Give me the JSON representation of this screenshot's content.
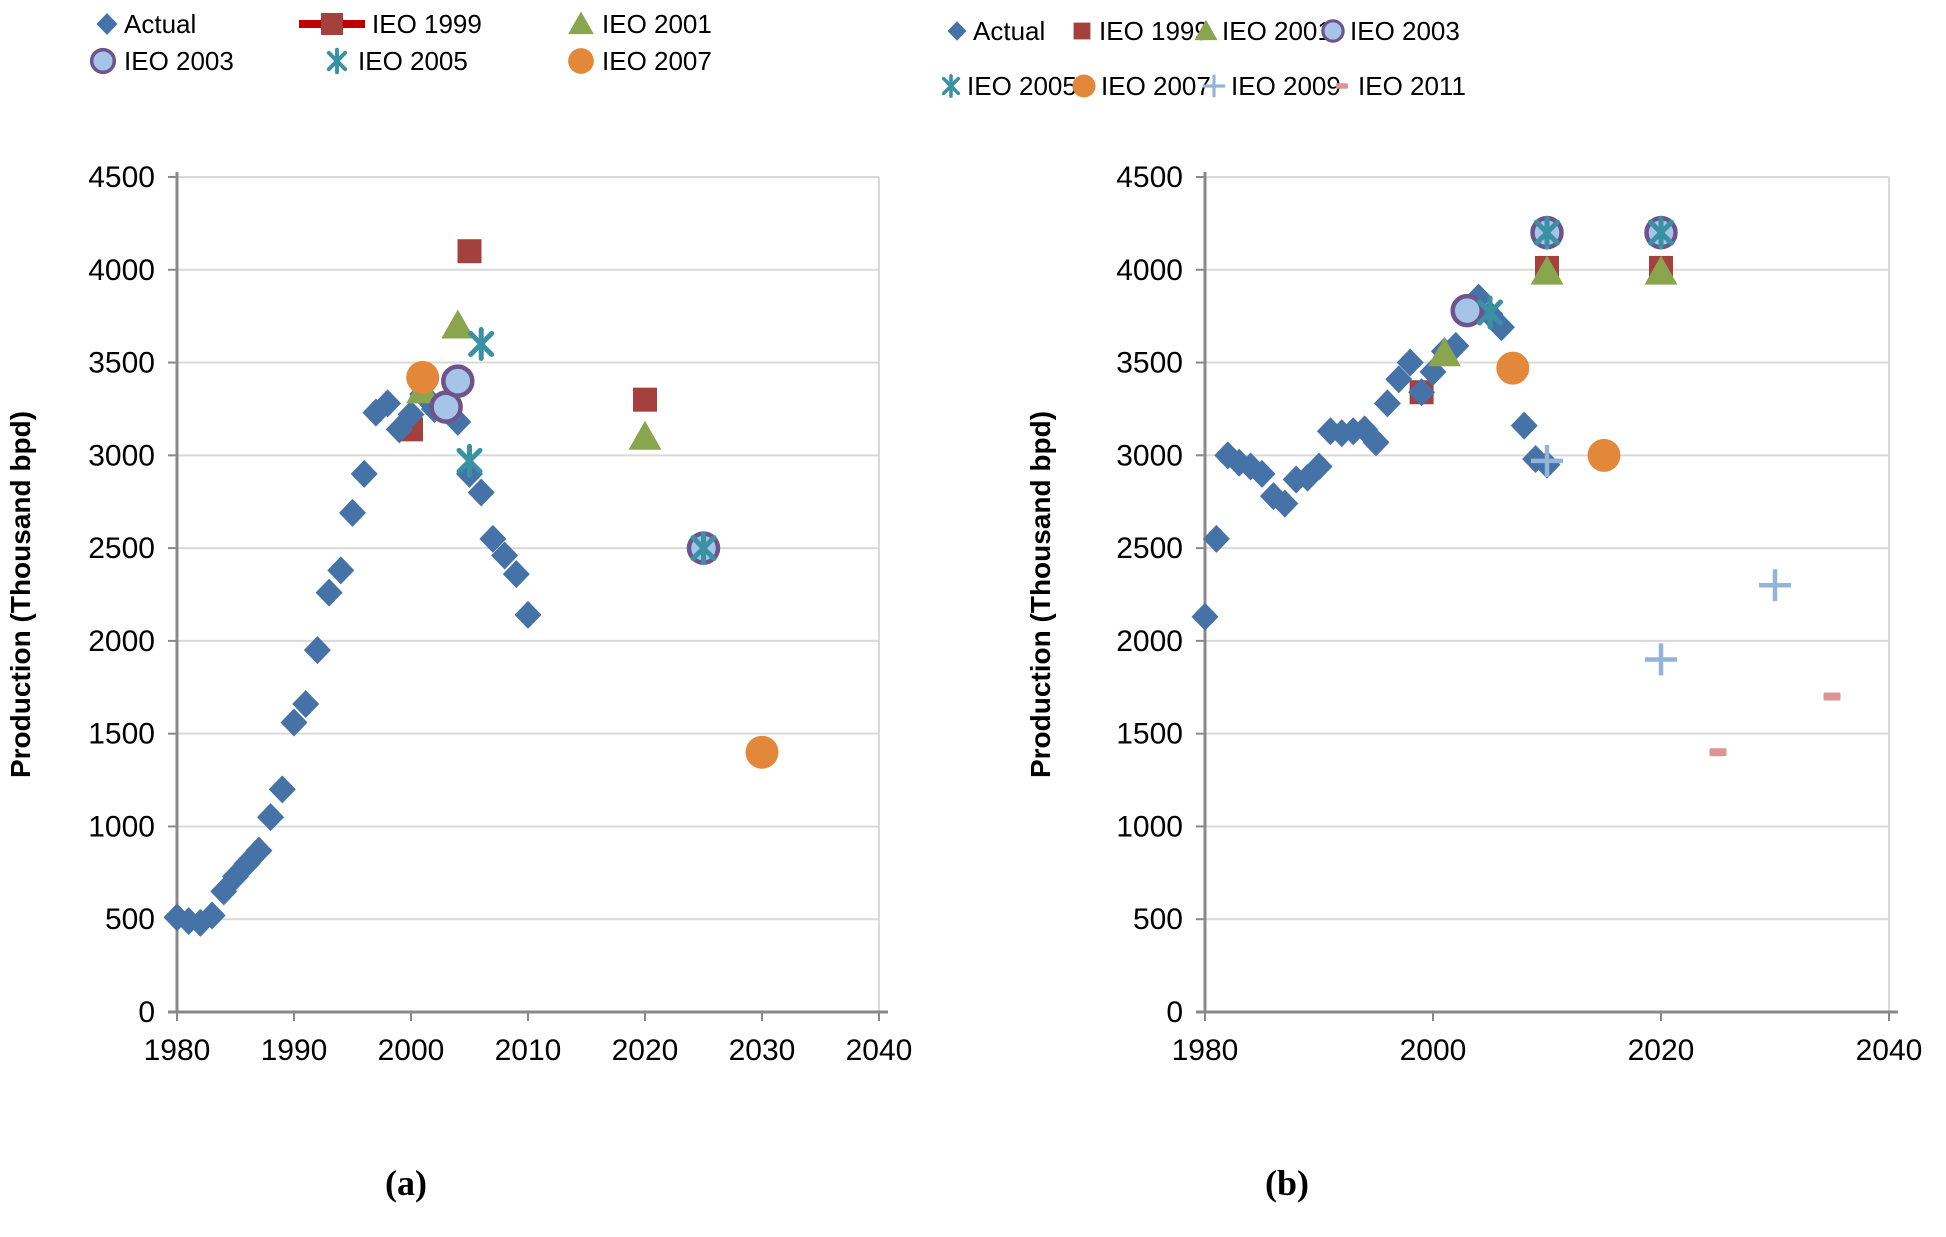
{
  "figure": {
    "ylabel": "Production (Thousand bpd)",
    "colors": {
      "actual_blue": "#4572A7",
      "ieo1999_red": "#A5413D",
      "ieo1999_legend_line_red": "#C00000",
      "ieo2001_green": "#89A54E",
      "ieo2003_fill_lightblue": "#A6C4E7",
      "ieo2003_ring_purple": "#6E548D",
      "ieo2005_teal": "#3A91A4",
      "ieo2007_orange": "#E3883B",
      "ieo2009_lightblue": "#95B3D7",
      "ieo2011_pink": "#D99694",
      "gridline": "#D9D9D9",
      "axis": "#898989"
    }
  },
  "chart_data": [
    {
      "id": "a",
      "type": "scatter",
      "caption": "(a)",
      "title": "",
      "xlabel": "",
      "ylabel": "Production (Thousand bpd)",
      "xlim": [
        1980,
        2040
      ],
      "ylim": [
        0,
        4500
      ],
      "grid": "horizontal",
      "x_ticks": [
        1980,
        1990,
        2000,
        2010,
        2020,
        2030,
        2040
      ],
      "y_ticks": [
        4500,
        4000,
        3500,
        3000,
        2500,
        2000,
        1500,
        1000,
        500,
        0
      ],
      "legend_rows": [
        [
          "Actual",
          "IEO 1999",
          "IEO 2001"
        ],
        [
          "IEO 2003",
          "IEO 2005",
          "IEO 2007"
        ]
      ],
      "series": [
        {
          "name": "IEO 1999",
          "marker": "square-icon",
          "color": "#A5413D",
          "legend_icon": "line-square-icon",
          "points": [
            [
              2000,
              3140
            ],
            [
              2005,
              4100
            ],
            [
              2020,
              3300
            ]
          ]
        },
        {
          "name": "Actual",
          "marker": "diamond-icon",
          "color": "#4572A7",
          "points": [
            [
              1980,
              510
            ],
            [
              1981,
              490
            ],
            [
              1982,
              480
            ],
            [
              1983,
              520
            ],
            [
              1984,
              650
            ],
            [
              1985,
              730
            ],
            [
              1986,
              800
            ],
            [
              1987,
              870
            ],
            [
              1988,
              1050
            ],
            [
              1989,
              1200
            ],
            [
              1990,
              1560
            ],
            [
              1991,
              1660
            ],
            [
              1992,
              1950
            ],
            [
              1993,
              2260
            ],
            [
              1994,
              2380
            ],
            [
              1995,
              2690
            ],
            [
              1996,
              2900
            ],
            [
              1997,
              3230
            ],
            [
              1998,
              3280
            ],
            [
              1999,
              3140
            ],
            [
              2000,
              3220
            ],
            [
              2001,
              3330
            ],
            [
              2002,
              3250
            ],
            [
              2003,
              3260
            ],
            [
              2004,
              3180
            ],
            [
              2005,
              2900
            ],
            [
              2006,
              2800
            ],
            [
              2007,
              2550
            ],
            [
              2008,
              2460
            ],
            [
              2009,
              2360
            ],
            [
              2010,
              2140
            ]
          ]
        },
        {
          "name": "IEO 2001",
          "marker": "triangle-icon",
          "color": "#89A54E",
          "points": [
            [
              2001,
              3350
            ],
            [
              2004,
              3700
            ],
            [
              2020,
              3100
            ]
          ]
        },
        {
          "name": "IEO 2003",
          "marker": "ring-circle-icon",
          "color": "#A6C4E7",
          "stroke": "#6E548D",
          "points": [
            [
              2003,
              3260
            ],
            [
              2004,
              3400
            ],
            [
              2025,
              2500
            ]
          ]
        },
        {
          "name": "IEO 2005",
          "marker": "asterisk-icon",
          "color": "#3A91A4",
          "points": [
            [
              2005,
              2970
            ],
            [
              2006,
              3600
            ],
            [
              2025,
              2500
            ]
          ]
        },
        {
          "name": "IEO 2007",
          "marker": "solid-circle-icon",
          "color": "#E3883B",
          "points": [
            [
              2001,
              3420
            ],
            [
              2030,
              1400
            ]
          ]
        }
      ]
    },
    {
      "id": "b",
      "type": "scatter",
      "caption": "(b)",
      "title": "",
      "xlabel": "",
      "ylabel": "Production (Thousand bpd)",
      "xlim": [
        1980,
        2040
      ],
      "ylim": [
        0,
        4500
      ],
      "grid": "horizontal",
      "x_ticks": [
        1980,
        2000,
        2020,
        2040
      ],
      "y_ticks": [
        4500,
        4000,
        3500,
        3000,
        2500,
        2000,
        1500,
        1000,
        500,
        0
      ],
      "legend_rows": [
        [
          "Actual",
          "IEO 1999",
          "IEO 2001",
          "IEO 2003"
        ],
        [
          "IEO 2005",
          "IEO 2007",
          "IEO 2009",
          "IEO 2011"
        ]
      ],
      "series": [
        {
          "name": "IEO 1999",
          "marker": "square-icon",
          "color": "#A5413D",
          "points": [
            [
              1999,
              3340
            ],
            [
              2010,
              4010
            ],
            [
              2020,
              4010
            ]
          ]
        },
        {
          "name": "Actual",
          "marker": "diamond-icon",
          "color": "#4572A7",
          "points": [
            [
              1980,
              2130
            ],
            [
              1981,
              2550
            ],
            [
              1982,
              3000
            ],
            [
              1983,
              2960
            ],
            [
              1984,
              2940
            ],
            [
              1985,
              2900
            ],
            [
              1986,
              2780
            ],
            [
              1987,
              2740
            ],
            [
              1988,
              2870
            ],
            [
              1989,
              2880
            ],
            [
              1990,
              2940
            ],
            [
              1991,
              3130
            ],
            [
              1992,
              3120
            ],
            [
              1993,
              3130
            ],
            [
              1994,
              3140
            ],
            [
              1995,
              3070
            ],
            [
              1996,
              3280
            ],
            [
              1997,
              3410
            ],
            [
              1998,
              3500
            ],
            [
              1999,
              3340
            ],
            [
              2000,
              3450
            ],
            [
              2001,
              3560
            ],
            [
              2002,
              3590
            ],
            [
              2003,
              3790
            ],
            [
              2004,
              3850
            ],
            [
              2005,
              3760
            ],
            [
              2006,
              3690
            ],
            [
              2007,
              3480
            ],
            [
              2008,
              3160
            ],
            [
              2009,
              2980
            ],
            [
              2010,
              2950
            ]
          ]
        },
        {
          "name": "IEO 2001",
          "marker": "triangle-icon",
          "color": "#89A54E",
          "points": [
            [
              2001,
              3550
            ],
            [
              2010,
              3990
            ],
            [
              2020,
              3990
            ]
          ]
        },
        {
          "name": "IEO 2003",
          "marker": "ring-circle-icon",
          "color": "#A6C4E7",
          "stroke": "#6E548D",
          "points": [
            [
              2003,
              3780
            ],
            [
              2010,
              4200
            ],
            [
              2020,
              4200
            ]
          ]
        },
        {
          "name": "IEO 2005",
          "marker": "asterisk-icon",
          "color": "#3A91A4",
          "points": [
            [
              2005,
              3770
            ],
            [
              2010,
              4200
            ],
            [
              2020,
              4200
            ]
          ]
        },
        {
          "name": "IEO 2007",
          "marker": "solid-circle-icon",
          "color": "#E3883B",
          "points": [
            [
              2007,
              3470
            ],
            [
              2015,
              3000
            ]
          ]
        },
        {
          "name": "IEO 2009",
          "marker": "plus-icon",
          "color": "#95B3D7",
          "points": [
            [
              2010,
              2970
            ],
            [
              2020,
              1900
            ],
            [
              2030,
              2300
            ]
          ]
        },
        {
          "name": "IEO 2011",
          "marker": "dash-icon",
          "color": "#D99694",
          "points": [
            [
              2025,
              1400
            ],
            [
              2035,
              1700
            ]
          ]
        }
      ]
    }
  ]
}
